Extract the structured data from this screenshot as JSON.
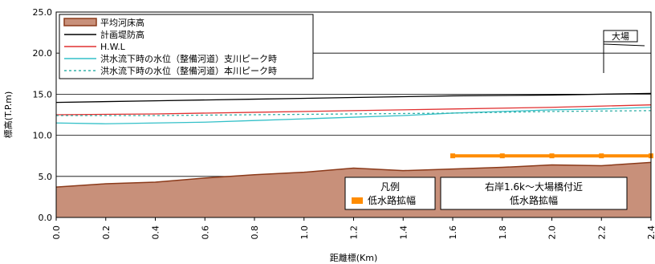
{
  "chart_data": {
    "type": "line",
    "ylabel": "標高(T.P.m)",
    "xlabel": "距離標(Km)",
    "xlim": [
      0,
      2.4
    ],
    "ylim": [
      0,
      25
    ],
    "x_ticks": [
      "0.0",
      "0.2",
      "0.4",
      "0.6",
      "0.8",
      "1.0",
      "1.2",
      "1.4",
      "1.6",
      "1.8",
      "2.0",
      "2.2",
      "2.4"
    ],
    "y_ticks": [
      "0.0",
      "5.0",
      "10.0",
      "15.0",
      "20.0",
      "25.0"
    ],
    "grid": "horizontal",
    "legend_position": "top-left",
    "series": [
      {
        "name": "平均河床高",
        "kind": "area",
        "color": "#c8907a",
        "edge_color": "#8b3a1a",
        "x": [
          0,
          0.2,
          0.4,
          0.6,
          0.8,
          1.0,
          1.2,
          1.4,
          1.6,
          1.8,
          2.0,
          2.2,
          2.4
        ],
        "y": [
          3.7,
          4.1,
          4.3,
          4.8,
          5.2,
          5.5,
          6.0,
          5.7,
          5.9,
          6.1,
          6.4,
          6.3,
          6.7
        ]
      },
      {
        "name": "計画堤防高",
        "kind": "line",
        "color": "#000000",
        "x": [
          0,
          0.4,
          0.8,
          1.2,
          1.6,
          2.0,
          2.4
        ],
        "y": [
          14.0,
          14.2,
          14.4,
          14.6,
          14.8,
          14.9,
          15.1
        ]
      },
      {
        "name": "H.W.L",
        "kind": "line",
        "color": "#e03030",
        "x": [
          0,
          0.4,
          0.8,
          1.2,
          1.6,
          2.0,
          2.4
        ],
        "y": [
          12.5,
          12.6,
          12.8,
          13.0,
          13.2,
          13.4,
          13.7
        ]
      },
      {
        "name": "洪水流下時の水位（整備河道）支川ピーク時",
        "kind": "line",
        "color": "#33c0c8",
        "x": [
          0,
          0.2,
          0.4,
          0.6,
          0.8,
          1.0,
          1.2,
          1.4,
          1.6,
          1.8,
          2.0,
          2.2,
          2.4
        ],
        "y": [
          11.5,
          11.4,
          11.5,
          11.6,
          11.8,
          12.0,
          12.2,
          12.4,
          12.7,
          12.9,
          13.1,
          13.2,
          13.4
        ]
      },
      {
        "name": "洪水流下時の水位（整備河道）本川ピーク時",
        "kind": "dotted",
        "color": "#33b0a8",
        "x": [
          0,
          0.4,
          0.8,
          1.2,
          1.6,
          2.0,
          2.4
        ],
        "y": [
          12.4,
          12.4,
          12.5,
          12.6,
          12.7,
          12.9,
          13.0
        ]
      },
      {
        "name": "低水路拡幅",
        "kind": "bar-line",
        "color": "#ff8c00",
        "x": [
          1.6,
          1.8,
          2.0,
          2.2,
          2.4
        ],
        "y": [
          7.5,
          7.5,
          7.5,
          7.5,
          7.5
        ]
      }
    ],
    "legend_box": {
      "title": "凡例",
      "item": "低水路拡幅"
    },
    "annotations": {
      "section_label_1": "右岸1.6k～大場橋付近",
      "section_label_2": "低水路拡幅",
      "bridge_label": "大場"
    }
  }
}
